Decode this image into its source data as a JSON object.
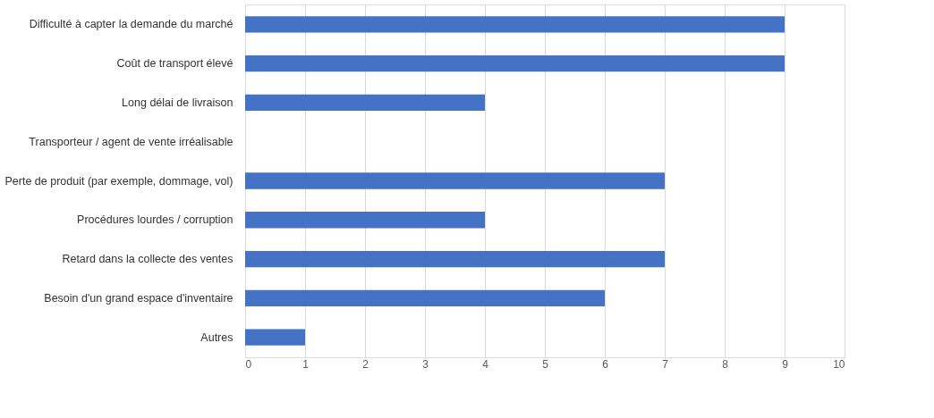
{
  "chart_data": {
    "type": "bar",
    "orientation": "horizontal",
    "categories": [
      "Difficulté à capter la demande du marché",
      "Coût de transport élevé",
      "Long délai de livraison",
      "Transporteur / agent de vente irréalisable",
      "Perte de produit (par exemple, dommage, vol)",
      "Procédures lourdes / corruption",
      "Retard dans la collecte des ventes",
      "Besoin d'un grand espace d'inventaire",
      "Autres"
    ],
    "values": [
      9,
      9,
      4,
      0,
      7,
      4,
      7,
      6,
      1
    ],
    "color": "#4472c4",
    "xlim": [
      0,
      10
    ],
    "xticks": [
      0,
      1,
      2,
      3,
      4,
      5,
      6,
      7,
      8,
      9,
      10
    ],
    "grid": "x"
  }
}
